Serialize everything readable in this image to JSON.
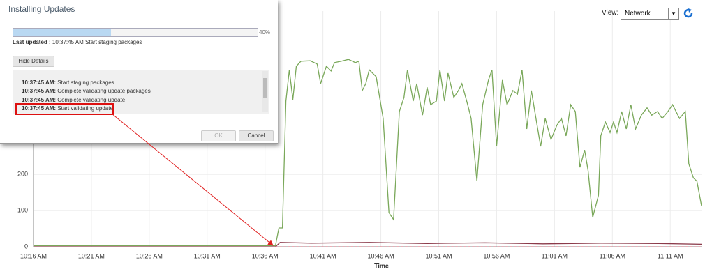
{
  "view_selector": {
    "label": "View:",
    "value": "Network"
  },
  "dialog": {
    "title": "Installing Updates",
    "progress": {
      "value": 40,
      "label": "40%"
    },
    "last_updated": {
      "label": "Last updated :",
      "text": "10:37:45 AM Start staging packages"
    },
    "details_button": "Hide Details",
    "log": [
      {
        "time": "10:37:45 AM:",
        "message": "Start staging packages"
      },
      {
        "time": "10:37:45 AM:",
        "message": "Complete validating update packages"
      },
      {
        "time": "10:37:45 AM:",
        "message": "Complete validating update"
      },
      {
        "time": "10:37:45 AM:",
        "message": "Start validating update"
      }
    ],
    "ok_button": "OK",
    "cancel_button": "Cancel"
  },
  "chart_data": {
    "type": "line",
    "x_label": "Time",
    "xlim": [
      616,
      673.7
    ],
    "xticks": [
      {
        "value": 616,
        "label": "10:16 AM"
      },
      {
        "value": 621,
        "label": "10:21 AM"
      },
      {
        "value": 626,
        "label": "10:26 AM"
      },
      {
        "value": 631,
        "label": "10:31 AM"
      },
      {
        "value": 636,
        "label": "10:36 AM"
      },
      {
        "value": 641,
        "label": "10:41 AM"
      },
      {
        "value": 646,
        "label": "10:46 AM"
      },
      {
        "value": 651,
        "label": "10:51 AM"
      },
      {
        "value": 656,
        "label": "10:56 AM"
      },
      {
        "value": 661,
        "label": "11:01 AM"
      },
      {
        "value": 666,
        "label": "11:06 AM"
      },
      {
        "value": 671,
        "label": "11:11 AM"
      }
    ],
    "ylim": [
      0,
      650
    ],
    "yticks": [
      0,
      100,
      200
    ],
    "grid": true,
    "series": [
      {
        "color": "#7aa85a",
        "dashed": false,
        "x": [
          616,
          636.9,
          637.2,
          637.5,
          637.8,
          638.1,
          638.4,
          638.7,
          639.1,
          639.9,
          640.5,
          640.8,
          641.3,
          641.7,
          642.0,
          642.6,
          643.2,
          643.8,
          644.1,
          644.4,
          644.7,
          645.0,
          645.6,
          646.2,
          646.7,
          647.1,
          647.6,
          648.0,
          648.3,
          648.8,
          649.1,
          649.6,
          650.0,
          650.3,
          650.8,
          651.1,
          651.5,
          651.8,
          652.3,
          652.7,
          653.0,
          653.5,
          653.8,
          654.3,
          654.8,
          655.3,
          655.6,
          656.0,
          656.5,
          656.9,
          657.4,
          657.8,
          658.2,
          658.6,
          659.0,
          659.4,
          659.8,
          660.2,
          660.7,
          661.2,
          661.6,
          662.0,
          662.4,
          662.8,
          663.2,
          663.6,
          663.9,
          664.3,
          664.8,
          665.0,
          665.4,
          665.8,
          666.1,
          666.4,
          666.8,
          667.2,
          667.6,
          668.0,
          668.5,
          669.0,
          669.4,
          669.9,
          670.3,
          670.8,
          671.2,
          671.5,
          671.8,
          672.3,
          672.6,
          673.0,
          673.3,
          673.7
        ],
        "values": [
          3,
          3,
          52,
          52,
          402,
          488,
          406,
          498,
          512,
          513,
          504,
          450,
          498,
          485,
          508,
          512,
          517,
          508,
          512,
          431,
          450,
          488,
          469,
          354,
          94,
          75,
          373,
          412,
          488,
          402,
          450,
          363,
          440,
          392,
          402,
          488,
          402,
          479,
          412,
          431,
          450,
          392,
          354,
          181,
          392,
          460,
          488,
          277,
          460,
          392,
          431,
          421,
          488,
          325,
          431,
          354,
          277,
          354,
          296,
          335,
          354,
          306,
          392,
          373,
          219,
          267,
          210,
          81,
          142,
          306,
          344,
          315,
          344,
          315,
          373,
          325,
          392,
          325,
          363,
          383,
          363,
          373,
          354,
          373,
          392,
          373,
          354,
          373,
          229,
          190,
          181,
          113
        ]
      },
      {
        "color": "#8b3a4a",
        "dashed": false,
        "x": [
          616,
          636.9,
          637.3,
          640,
          645,
          650,
          655,
          660,
          665,
          670,
          673.7
        ],
        "values": [
          0,
          0,
          12,
          10,
          12,
          9,
          11,
          8,
          10,
          9,
          7
        ]
      },
      {
        "color": "#e07a8a",
        "dashed": true,
        "x": [
          636.9,
          673.7
        ],
        "values": [
          0,
          0
        ]
      }
    ]
  }
}
